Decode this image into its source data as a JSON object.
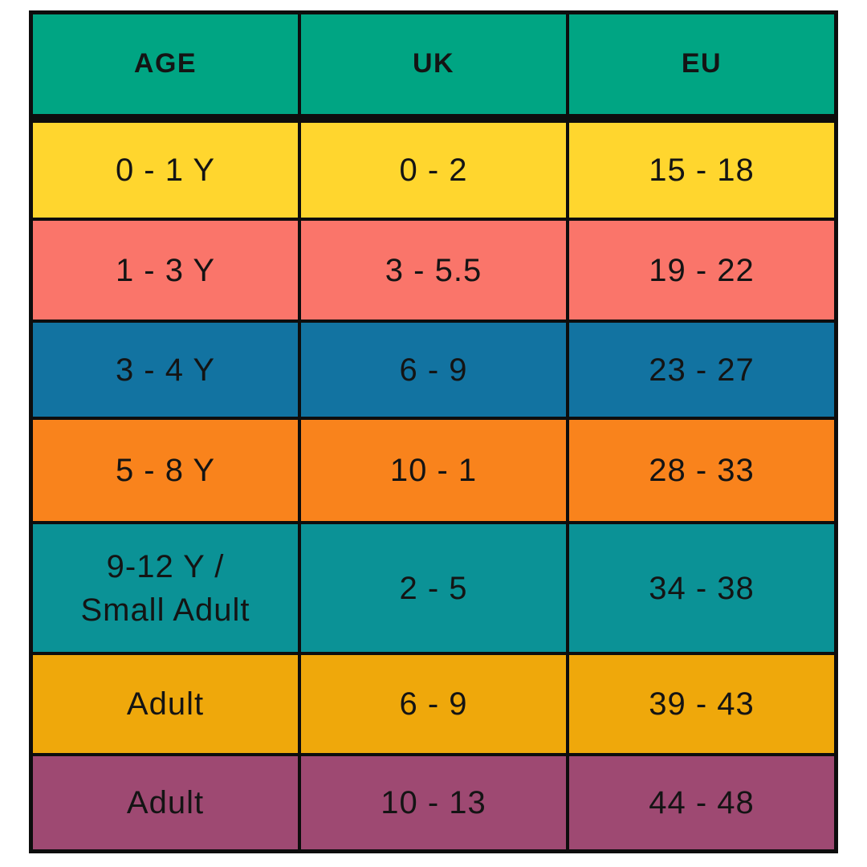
{
  "table": {
    "header": {
      "color": "#00A583",
      "cells": [
        "AGE",
        "UK",
        "EU"
      ]
    },
    "rows": [
      {
        "color": "#FFD62E",
        "cells": [
          "0 - 1 Y",
          "0 - 2",
          "15 - 18"
        ]
      },
      {
        "color": "#FA756A",
        "cells": [
          "1 - 3 Y",
          "3 - 5.5",
          "19 - 22"
        ]
      },
      {
        "color": "#1273A1",
        "cells": [
          "3 - 4 Y",
          "6 - 9",
          "23 - 27"
        ]
      },
      {
        "color": "#F9831C",
        "cells": [
          "5 - 8 Y",
          "10 - 1",
          "28 - 33"
        ]
      },
      {
        "color": "#0B9296",
        "cells": [
          "9-12 Y /\nSmall Adult",
          "2 - 5",
          "34 - 38"
        ]
      },
      {
        "color": "#EFA80B",
        "cells": [
          "Adult",
          "6 - 9",
          "39 - 43"
        ]
      },
      {
        "color": "#9E4972",
        "cells": [
          "Adult",
          "10 - 13",
          "44 - 48"
        ]
      }
    ]
  },
  "colors": {
    "grid_line": "#0d0d0d",
    "text": "#141414",
    "page_background": "#ffffff"
  },
  "chart_data": {
    "type": "table",
    "columns": [
      "AGE",
      "UK",
      "EU"
    ],
    "rows": [
      [
        "0 - 1 Y",
        "0 - 2",
        "15 - 18"
      ],
      [
        "1 - 3 Y",
        "3 - 5.5",
        "19 - 22"
      ],
      [
        "3 - 4 Y",
        "6 - 9",
        "23 - 27"
      ],
      [
        "5 - 8 Y",
        "10 - 1",
        "28 - 33"
      ],
      [
        "9-12 Y / Small Adult",
        "2 - 5",
        "34 - 38"
      ],
      [
        "Adult",
        "6 - 9",
        "39 - 43"
      ],
      [
        "Adult",
        "10 - 13",
        "44 - 48"
      ]
    ],
    "row_colors": [
      "#FFD62E",
      "#FA756A",
      "#1273A1",
      "#F9831C",
      "#0B9296",
      "#EFA80B",
      "#9E4972"
    ],
    "header_color": "#00A583"
  }
}
